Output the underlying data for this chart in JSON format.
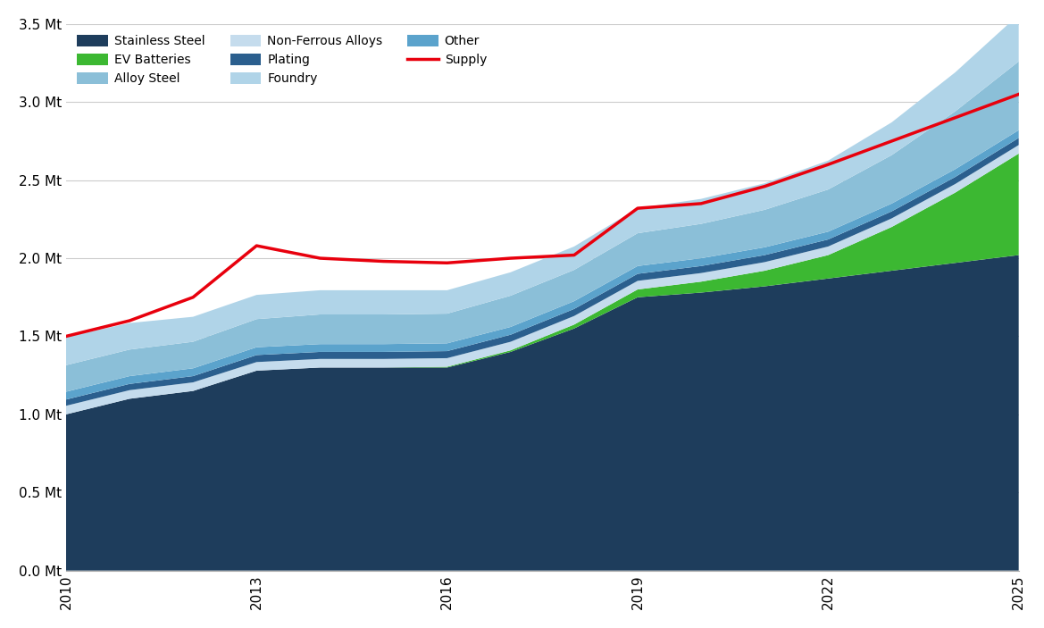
{
  "years": [
    2010,
    2011,
    2012,
    2013,
    2014,
    2015,
    2016,
    2017,
    2018,
    2019,
    2020,
    2021,
    2022,
    2023,
    2024,
    2025
  ],
  "stainless_steel": [
    1.0,
    1.1,
    1.15,
    1.28,
    1.3,
    1.3,
    1.3,
    1.4,
    1.55,
    1.75,
    1.78,
    1.82,
    1.87,
    1.92,
    1.97,
    2.02
  ],
  "ev_batteries": [
    0.0,
    0.0,
    0.0,
    0.0,
    0.0,
    0.0,
    0.005,
    0.01,
    0.025,
    0.05,
    0.07,
    0.1,
    0.15,
    0.28,
    0.45,
    0.65
  ],
  "non_ferrous": [
    0.055,
    0.055,
    0.055,
    0.055,
    0.055,
    0.055,
    0.055,
    0.055,
    0.055,
    0.055,
    0.055,
    0.055,
    0.055,
    0.055,
    0.055,
    0.055
  ],
  "plating": [
    0.04,
    0.04,
    0.04,
    0.045,
    0.045,
    0.045,
    0.045,
    0.045,
    0.045,
    0.045,
    0.045,
    0.045,
    0.045,
    0.045,
    0.045,
    0.045
  ],
  "other": [
    0.05,
    0.05,
    0.05,
    0.05,
    0.05,
    0.05,
    0.05,
    0.05,
    0.05,
    0.05,
    0.05,
    0.05,
    0.05,
    0.05,
    0.05,
    0.05
  ],
  "alloy_steel": [
    0.17,
    0.17,
    0.17,
    0.18,
    0.19,
    0.19,
    0.19,
    0.2,
    0.2,
    0.21,
    0.22,
    0.24,
    0.27,
    0.31,
    0.37,
    0.44
  ],
  "foundry": [
    0.18,
    0.17,
    0.16,
    0.155,
    0.155,
    0.155,
    0.15,
    0.15,
    0.15,
    0.16,
    0.16,
    0.17,
    0.185,
    0.21,
    0.25,
    0.3
  ],
  "supply": [
    1.5,
    1.6,
    1.75,
    2.08,
    2.0,
    1.98,
    1.97,
    2.0,
    2.02,
    2.32,
    2.35,
    2.46,
    2.6,
    2.75,
    2.9,
    3.05
  ],
  "colors": {
    "stainless_steel": "#1e3d5c",
    "ev_batteries": "#3cb832",
    "non_ferrous": "#c5dced",
    "plating": "#2b5f8e",
    "other": "#5ba3cc",
    "alloy_steel": "#8bbfd8",
    "foundry": "#b0d4e8"
  },
  "ylim": [
    0,
    3.5
  ],
  "yticks": [
    0.0,
    0.5,
    1.0,
    1.5,
    2.0,
    2.5,
    3.0,
    3.5
  ],
  "ytick_labels": [
    "0.0 Mt",
    "0.5 Mt",
    "1.0 Mt",
    "1.5 Mt",
    "2.0 Mt",
    "2.5 Mt",
    "3.0 Mt",
    "3.5 Mt"
  ],
  "xticks": [
    2010,
    2013,
    2016,
    2019,
    2022,
    2025
  ],
  "supply_color": "#e8000d",
  "background_color": "#ffffff",
  "grid_color": "#cccccc"
}
